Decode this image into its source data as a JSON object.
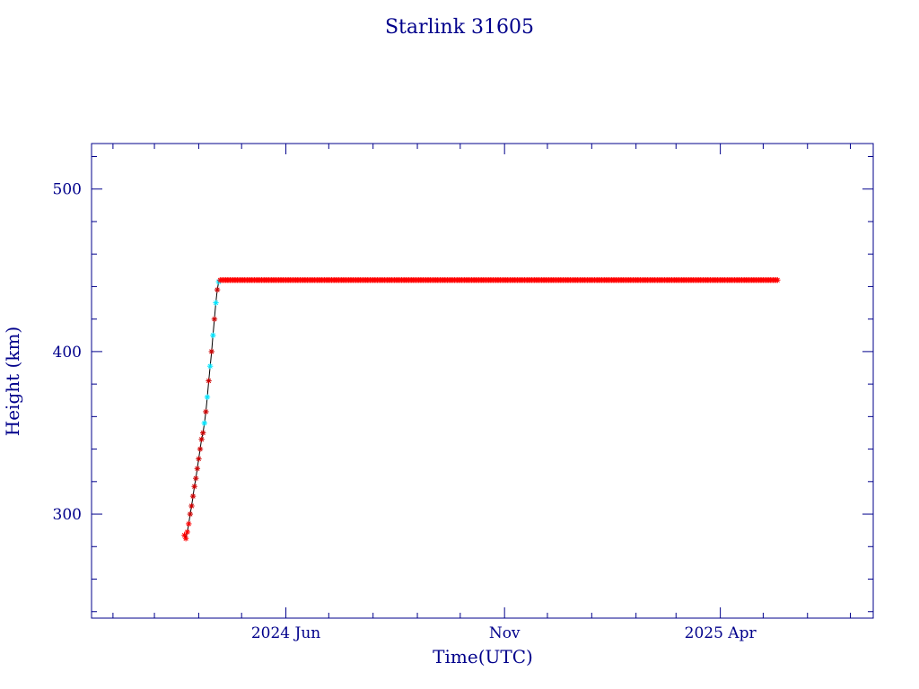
{
  "chart_data": {
    "type": "scatter",
    "title": "Starlink 31605",
    "xlabel": "Time(UTC)",
    "ylabel": "Height (km)",
    "x_unit": "date",
    "xlim": [
      "2024-01-17",
      "2025-07-17"
    ],
    "ylim": [
      236,
      528
    ],
    "x_ticks": [
      {
        "date": "2024-06-01",
        "label": "2024 Jun"
      },
      {
        "date": "2024-11-01",
        "label": "Nov"
      },
      {
        "date": "2025-04-01",
        "label": "2025 Apr"
      }
    ],
    "y_ticks": [
      300,
      400,
      500
    ],
    "grid": false,
    "colors": {
      "axis": "#00008b",
      "text": "#00008b",
      "series_primary": "#ff0000",
      "series_raise_dark": "#cc0000",
      "series_raise_cyan": "#00e5ff",
      "connector": "#000000"
    },
    "series": [
      {
        "marker": "asterisk",
        "color": "#ff0000",
        "description_points": [
          {
            "x": "2024-03-22",
            "y": 287
          },
          {
            "x": "2024-03-23",
            "y": 285
          },
          {
            "x": "2024-03-24",
            "y": 289
          },
          {
            "x": "2024-03-25",
            "y": 294
          },
          {
            "x": "2024-03-26",
            "y": 300
          },
          {
            "x": "2024-03-27",
            "y": 305
          },
          {
            "x": "2024-03-28",
            "y": 311
          },
          {
            "x": "2024-03-29",
            "y": 317
          },
          {
            "x": "2024-03-30",
            "y": 322
          },
          {
            "x": "2024-03-31",
            "y": 328
          },
          {
            "x": "2024-04-01",
            "y": 334
          },
          {
            "x": "2024-04-02",
            "y": 340
          },
          {
            "x": "2024-04-03",
            "y": 346
          },
          {
            "x": "2024-04-04",
            "y": 350
          },
          {
            "x": "2024-04-05",
            "y": 356
          },
          {
            "x": "2024-04-06",
            "y": 363
          },
          {
            "x": "2024-04-07",
            "y": 372
          },
          {
            "x": "2024-04-08",
            "y": 382
          },
          {
            "x": "2024-04-09",
            "y": 391
          },
          {
            "x": "2024-04-10",
            "y": 400
          },
          {
            "x": "2024-04-11",
            "y": 410
          },
          {
            "x": "2024-04-12",
            "y": 420
          },
          {
            "x": "2024-04-13",
            "y": 430
          },
          {
            "x": "2024-04-14",
            "y": 438
          },
          {
            "x": "2024-04-15",
            "y": 443
          }
        ],
        "plateau": {
          "x_start": "2024-04-15",
          "x_end": "2025-05-11",
          "y": 444,
          "step_days": 1
        }
      }
    ]
  }
}
